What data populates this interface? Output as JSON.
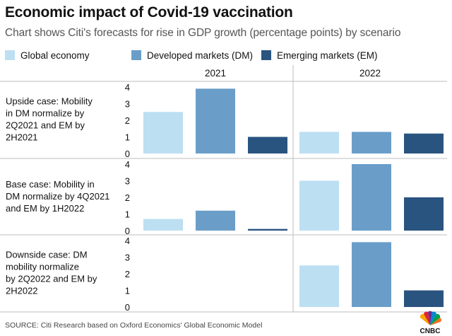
{
  "title": "Economic impact of Covid-19 vaccination",
  "subtitle": "Chart shows Citi's forecasts for rise in GDP growth (percentage points) by scenario",
  "source": "SOURCE: Citi Research based on Oxford Economics' Global Economic Model",
  "brand": "CNBC",
  "colors": {
    "Global economy": "#bcdff2",
    "Developed markets (DM)": "#6a9ec9",
    "Emerging markets (EM)": "#2a5480"
  },
  "chart_data": {
    "type": "bar",
    "title": "Economic impact of Covid-19 vaccination",
    "subtitle": "Chart shows Citi's forecasts for rise in GDP growth (percentage points) by scenario",
    "columns": [
      "2021",
      "2022"
    ],
    "series_names": [
      "Global economy",
      "Developed markets (DM)",
      "Emerging markets (EM)"
    ],
    "legend_position": "top",
    "ylim": [
      0,
      4
    ],
    "yticks": [
      0,
      1,
      2,
      3,
      4
    ],
    "grid": false,
    "panels": [
      {
        "label": "Upside case: Mobility in DM normalize by 2Q2021 and EM by 2H2021",
        "values": {
          "2021": [
            2.5,
            3.9,
            1.0
          ],
          "2022": [
            1.3,
            1.3,
            1.2
          ]
        }
      },
      {
        "label": "Base case: Mobility in DM normalize by 4Q2021 and EM by 1H2022",
        "values": {
          "2021": [
            0.7,
            1.2,
            0.1
          ],
          "2022": [
            3.0,
            4.0,
            2.0
          ]
        }
      },
      {
        "label": "Downside case: DM mobility normalize by 2Q2022 and EM by 2H2022",
        "values": {
          "2021": [
            0.0,
            0.0,
            0.0
          ],
          "2022": [
            2.5,
            3.9,
            1.0
          ]
        }
      }
    ]
  }
}
